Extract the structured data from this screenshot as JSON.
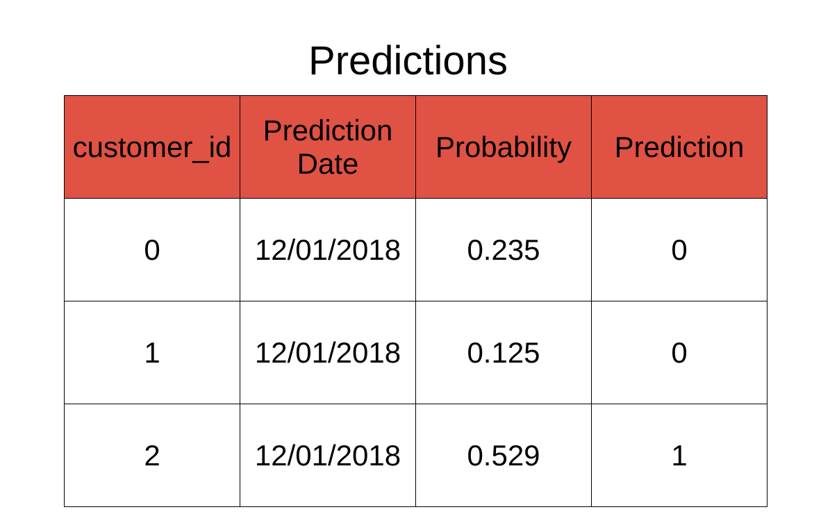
{
  "title": "Predictions",
  "colors": {
    "header_bg": "#e05244",
    "cell_bg": "#ffffff",
    "border": "#000000"
  },
  "table": {
    "headers": [
      "customer_id",
      "Prediction Date",
      "Probability",
      "Prediction"
    ],
    "rows": [
      [
        "0",
        "12/01/2018",
        "0.235",
        "0"
      ],
      [
        "1",
        "12/01/2018",
        "0.125",
        "0"
      ],
      [
        "2",
        "12/01/2018",
        "0.529",
        "1"
      ]
    ]
  }
}
